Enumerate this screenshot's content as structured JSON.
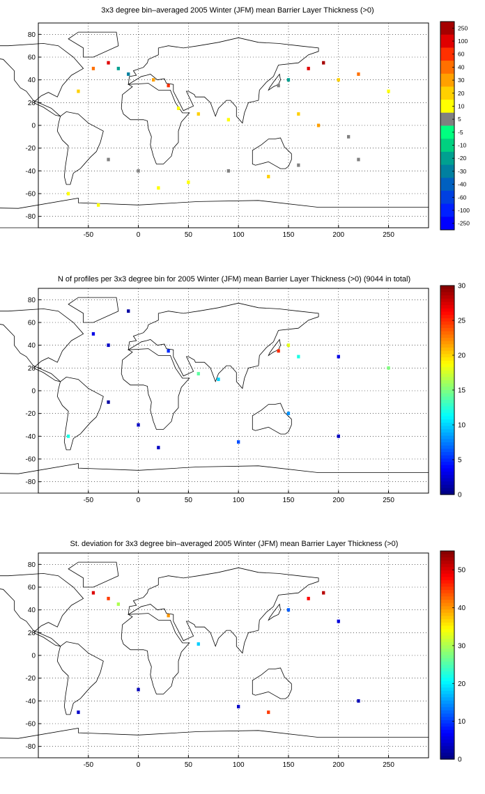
{
  "chart_data": [
    {
      "type": "heatmap",
      "title": "3x3 degree bin–averaged 2005 Winter (JFM) mean Barrier Layer Thickness (>0)",
      "xlim": [
        -100,
        290
      ],
      "ylim": [
        -90,
        90
      ],
      "x_ticks": [
        -50,
        0,
        50,
        100,
        150,
        200,
        250
      ],
      "y_ticks": [
        -80,
        -60,
        -40,
        -20,
        0,
        20,
        40,
        60,
        80
      ],
      "grid": true,
      "colorbar": {
        "kind": "discrete",
        "labels": [
          "250",
          "100",
          "60",
          "40",
          "30",
          "20",
          "10",
          "5",
          "-5",
          "-10",
          "-20",
          "-30",
          "-40",
          "-60",
          "-100",
          "-250"
        ],
        "colors": [
          "#a50000",
          "#e00000",
          "#ff3000",
          "#ff7000",
          "#ffa000",
          "#ffd000",
          "#ffff00",
          "#808080",
          "#00ff80",
          "#00d080",
          "#00a090",
          "#0080a0",
          "#0060c0",
          "#0040e0",
          "#0020ff",
          "#0000ff"
        ]
      },
      "bins": [
        {
          "lon": -45,
          "lat": 50,
          "value": 40
        },
        {
          "lon": -30,
          "lat": 55,
          "value": 100
        },
        {
          "lon": -20,
          "lat": 50,
          "value": -20
        },
        {
          "lon": -10,
          "lat": 45,
          "value": -30
        },
        {
          "lon": -60,
          "lat": 30,
          "value": 20
        },
        {
          "lon": 15,
          "lat": 40,
          "value": 30
        },
        {
          "lon": 30,
          "lat": 35,
          "value": 60
        },
        {
          "lon": 40,
          "lat": 15,
          "value": 10
        },
        {
          "lon": 60,
          "lat": 10,
          "value": 20
        },
        {
          "lon": 90,
          "lat": 5,
          "value": 10
        },
        {
          "lon": 140,
          "lat": 35,
          "value": 5
        },
        {
          "lon": 150,
          "lat": 40,
          "value": -20
        },
        {
          "lon": 170,
          "lat": 50,
          "value": 100
        },
        {
          "lon": 185,
          "lat": 55,
          "value": 250
        },
        {
          "lon": 200,
          "lat": 40,
          "value": 20
        },
        {
          "lon": 220,
          "lat": 45,
          "value": 40
        },
        {
          "lon": 250,
          "lat": 30,
          "value": 10
        },
        {
          "lon": 160,
          "lat": 10,
          "value": 20
        },
        {
          "lon": 180,
          "lat": 0,
          "value": 30
        },
        {
          "lon": 210,
          "lat": -10,
          "value": 5
        },
        {
          "lon": -30,
          "lat": -30,
          "value": 5
        },
        {
          "lon": 0,
          "lat": -40,
          "value": 5
        },
        {
          "lon": 20,
          "lat": -55,
          "value": 10
        },
        {
          "lon": 50,
          "lat": -50,
          "value": 10
        },
        {
          "lon": 90,
          "lat": -40,
          "value": 5
        },
        {
          "lon": 130,
          "lat": -45,
          "value": 20
        },
        {
          "lon": 160,
          "lat": -35,
          "value": 5
        },
        {
          "lon": 220,
          "lat": -30,
          "value": 5
        },
        {
          "lon": -70,
          "lat": -60,
          "value": 10
        },
        {
          "lon": -40,
          "lat": -70,
          "value": 10
        }
      ]
    },
    {
      "type": "heatmap",
      "title": "N of profiles per 3x3 degree bin for 2005 Winter (JFM) mean Barrier Layer Thickness (>0) (9044 in total)",
      "xlim": [
        -100,
        290
      ],
      "ylim": [
        -90,
        90
      ],
      "x_ticks": [
        -50,
        0,
        50,
        100,
        150,
        200,
        250
      ],
      "y_ticks": [
        -80,
        -60,
        -40,
        -20,
        0,
        20,
        40,
        60,
        80
      ],
      "grid": true,
      "colorbar": {
        "kind": "continuous",
        "min": 0,
        "max": 30,
        "ticks": [
          0,
          5,
          10,
          15,
          20,
          25,
          30
        ]
      },
      "bins": [
        {
          "lon": -45,
          "lat": 50,
          "value": 3
        },
        {
          "lon": -30,
          "lat": 40,
          "value": 2
        },
        {
          "lon": -10,
          "lat": 70,
          "value": 1
        },
        {
          "lon": 30,
          "lat": 35,
          "value": 5
        },
        {
          "lon": 140,
          "lat": 35,
          "value": 25
        },
        {
          "lon": 150,
          "lat": 40,
          "value": 18
        },
        {
          "lon": 160,
          "lat": 30,
          "value": 12
        },
        {
          "lon": 200,
          "lat": 30,
          "value": 3
        },
        {
          "lon": 250,
          "lat": 20,
          "value": 15
        },
        {
          "lon": 60,
          "lat": 15,
          "value": 14
        },
        {
          "lon": 80,
          "lat": 10,
          "value": 10
        },
        {
          "lon": 0,
          "lat": -30,
          "value": 2
        },
        {
          "lon": 20,
          "lat": -50,
          "value": 2
        },
        {
          "lon": 100,
          "lat": -45,
          "value": 6
        },
        {
          "lon": 150,
          "lat": -20,
          "value": 8
        },
        {
          "lon": 200,
          "lat": -40,
          "value": 2
        },
        {
          "lon": -70,
          "lat": -40,
          "value": 12
        },
        {
          "lon": -30,
          "lat": -10,
          "value": 1
        }
      ]
    },
    {
      "type": "heatmap",
      "title": "St. deviation for 3x3 degree bin–averaged 2005 Winter (JFM) mean Barrier Layer Thickness (>0)",
      "xlim": [
        -100,
        290
      ],
      "ylim": [
        -90,
        90
      ],
      "x_ticks": [
        -50,
        0,
        50,
        100,
        150,
        200,
        250
      ],
      "y_ticks": [
        -80,
        -60,
        -40,
        -20,
        0,
        20,
        40,
        60,
        80
      ],
      "grid": true,
      "colorbar": {
        "kind": "continuous",
        "min": 0,
        "max": 55,
        "ticks": [
          0,
          10,
          20,
          30,
          40,
          50
        ]
      },
      "bins": [
        {
          "lon": -45,
          "lat": 55,
          "value": 50
        },
        {
          "lon": -30,
          "lat": 50,
          "value": 45
        },
        {
          "lon": -20,
          "lat": 45,
          "value": 30
        },
        {
          "lon": 30,
          "lat": 35,
          "value": 40
        },
        {
          "lon": 170,
          "lat": 50,
          "value": 48
        },
        {
          "lon": 185,
          "lat": 55,
          "value": 52
        },
        {
          "lon": 150,
          "lat": 40,
          "value": 12
        },
        {
          "lon": 200,
          "lat": 30,
          "value": 5
        },
        {
          "lon": 60,
          "lat": 10,
          "value": 18
        },
        {
          "lon": 0,
          "lat": -30,
          "value": 3
        },
        {
          "lon": 100,
          "lat": -45,
          "value": 4
        },
        {
          "lon": 130,
          "lat": -50,
          "value": 45
        },
        {
          "lon": 220,
          "lat": -40,
          "value": 3
        },
        {
          "lon": -60,
          "lat": -50,
          "value": 4
        }
      ]
    }
  ]
}
